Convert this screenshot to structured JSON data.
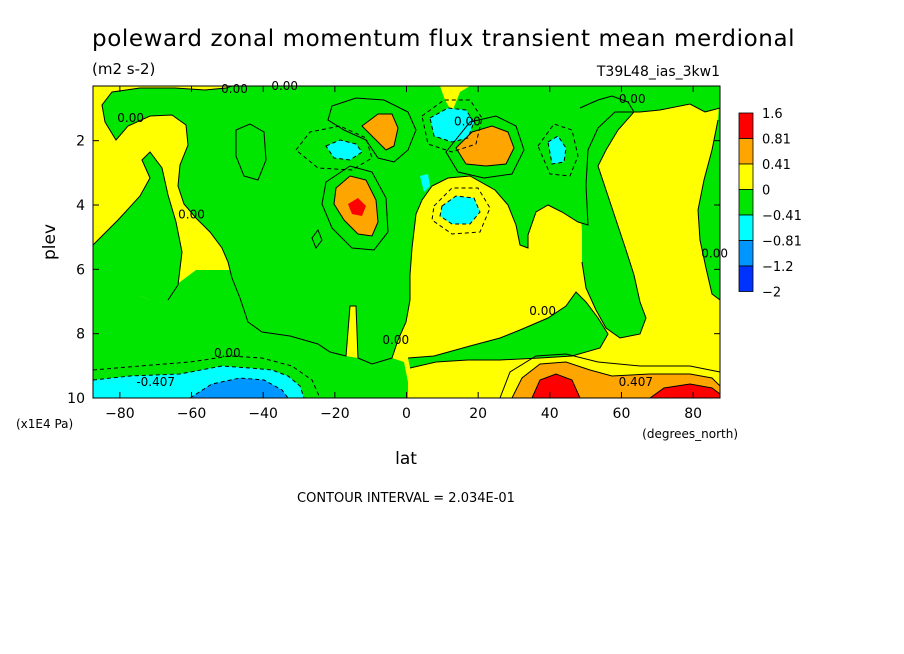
{
  "chart_data": {
    "type": "heatmap",
    "title": "poleward zonal momentum flux transient mean merdional",
    "subtitle": "(m2 s-2)",
    "run_id": "T39L48_ias_3kw1",
    "xlabel": "lat",
    "ylabel": "plev",
    "x_units": "(degrees_north)",
    "y_units": "(x1E4 Pa)",
    "xlim": [
      -87.5,
      87.5
    ],
    "ylim": [
      10,
      0.3
    ],
    "x_ticks": [
      -80,
      -60,
      -40,
      -20,
      0,
      20,
      40,
      60,
      80
    ],
    "x_tick_labels": [
      "−80",
      "−60",
      "−40",
      "−20",
      "0",
      "20",
      "40",
      "60",
      "80"
    ],
    "y_ticks": [
      2,
      4,
      6,
      8,
      10
    ],
    "y_tick_labels": [
      "2",
      "4",
      "6",
      "8",
      "10"
    ],
    "contour_interval_text": "CONTOUR INTERVAL = 2.034E-01",
    "colorbar": {
      "levels": [
        "1.6",
        "0.81",
        "0.41",
        "0",
        "−0.41",
        "−0.81",
        "−1.2",
        "−2"
      ],
      "colors": [
        "#ff0000",
        "#ffa500",
        "#ffff00",
        "#00e600",
        "#00ffff",
        "#0096ff",
        "#0032ff"
      ],
      "placement": "right"
    },
    "contour_labels": [
      {
        "text": "0.00",
        "lat": -77,
        "plev": 1.3
      },
      {
        "text": "0.00",
        "lat": -48,
        "plev": 0.4
      },
      {
        "text": "0.00",
        "lat": -34,
        "plev": 0.3
      },
      {
        "text": "0.00",
        "lat": -60,
        "plev": 4.3
      },
      {
        "text": "0.00",
        "lat": -50,
        "plev": 8.6
      },
      {
        "text": "0.00",
        "lat": -3,
        "plev": 8.2
      },
      {
        "text": "0.00",
        "lat": 17,
        "plev": 1.4
      },
      {
        "text": "0.00",
        "lat": 38,
        "plev": 7.3
      },
      {
        "text": "0.00",
        "lat": 63,
        "plev": 0.7
      },
      {
        "text": "0.00",
        "lat": 86,
        "plev": 5.5
      },
      {
        "text": "-0.407",
        "lat": -70,
        "plev": 9.5
      },
      {
        "text": "0.407",
        "lat": 64,
        "plev": 9.5
      }
    ],
    "grid": false,
    "legend": "colorbar-right"
  }
}
